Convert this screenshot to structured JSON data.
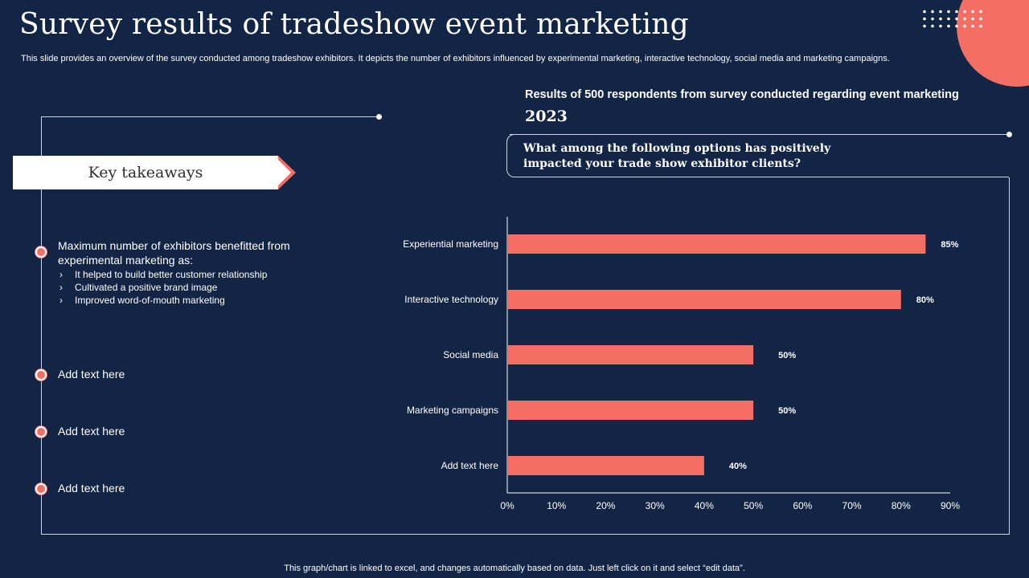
{
  "title": "Survey results of tradeshow event marketing",
  "subtitle": "This slide provides an overview of the survey conducted among tradeshow exhibitors. It depicts the number of exhibitors influenced by experimental marketing, interactive technology, social media and marketing campaigns.",
  "left": {
    "key_takeaways": "Key takeaways",
    "main_point": "Maximum number of exhibitors benefitted from experimental marketing as:",
    "sub_points": [
      "It helped to build better customer relationship",
      "Cultivated  a positive brand image",
      "Improved  word-of-mouth  marketing"
    ],
    "chevron": "›",
    "points": [
      "Add text here",
      "Add text here",
      "Add text here"
    ]
  },
  "right": {
    "heading": "Results of 500 respondents from survey conducted regarding event marketing",
    "year": "2023",
    "question": "What among the following options has positively impacted your trade show exhibitor clients?"
  },
  "colors": {
    "background": "#132545",
    "accent": "#f56e64",
    "bar": "#f56e64"
  },
  "chart_data": {
    "type": "bar",
    "orientation": "horizontal",
    "categories": [
      "Experiential marketing",
      "Interactive technology",
      "Social media",
      "Marketing campaigns",
      "Add text here"
    ],
    "values": [
      85,
      80,
      50,
      50,
      40
    ],
    "value_labels": [
      "85%",
      "80%",
      "50%",
      "50%",
      "40%"
    ],
    "xlim": [
      0,
      90
    ],
    "xticks": [
      "0%",
      "10%",
      "20%",
      "30%",
      "40%",
      "50%",
      "60%",
      "70%",
      "80%",
      "90%"
    ],
    "grid": false,
    "legend": "none"
  },
  "footer": "This graph/chart is linked to excel, and changes automatically based on data. Just left click on it and select “edit data”."
}
